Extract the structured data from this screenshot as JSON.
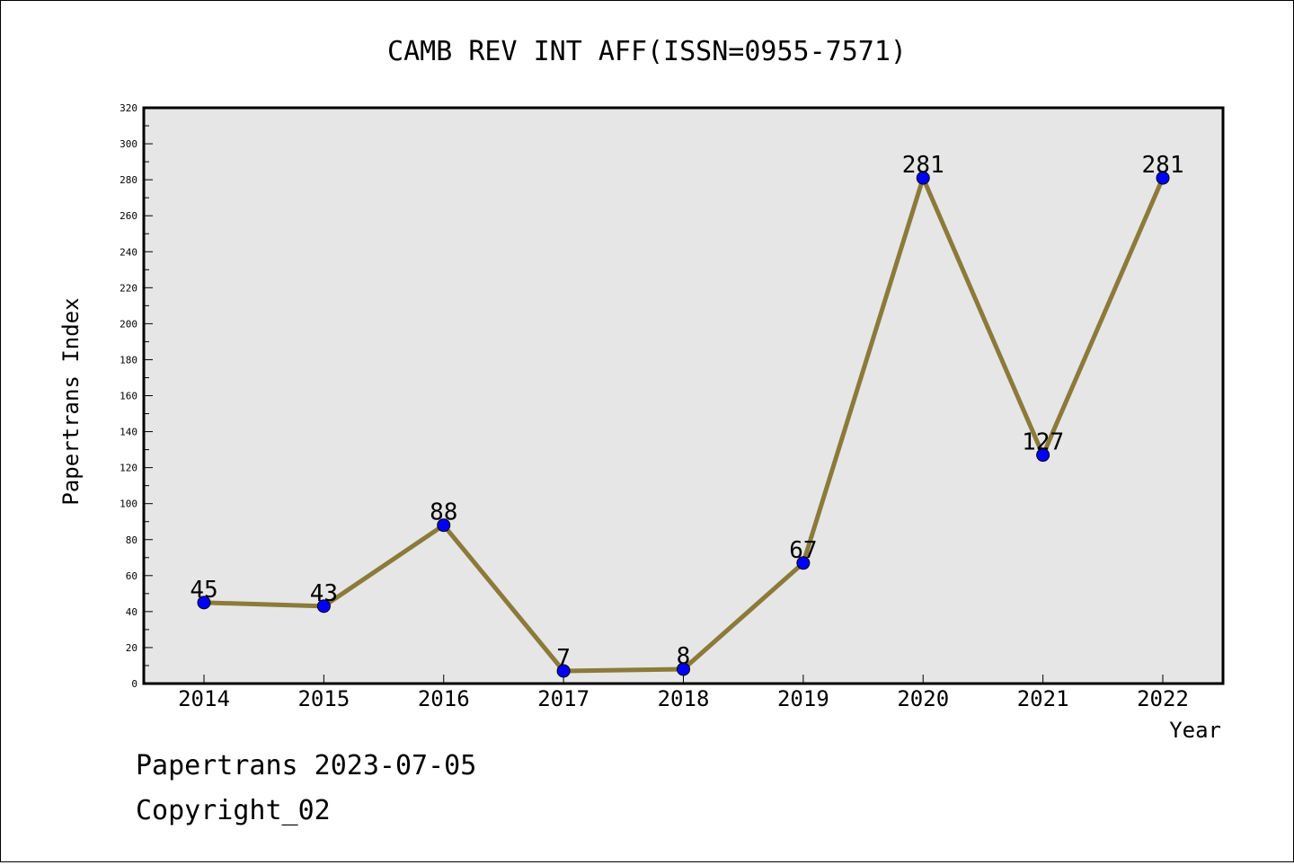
{
  "chart_data": {
    "type": "line",
    "title": "CAMB REV INT AFF(ISSN=0955-7571)",
    "xlabel": "Year",
    "ylabel": "Papertrans Index",
    "categories": [
      "2014",
      "2015",
      "2016",
      "2017",
      "2018",
      "2019",
      "2020",
      "2021",
      "2022"
    ],
    "values": [
      45,
      43,
      88,
      7,
      8,
      67,
      281,
      127,
      281
    ],
    "ylim": [
      0,
      320
    ],
    "yticks": [
      0,
      20,
      40,
      60,
      80,
      100,
      120,
      140,
      160,
      180,
      200,
      220,
      240,
      260,
      280,
      300,
      320
    ],
    "grid": false,
    "plot_background": "#e6e6e6",
    "line_color": "#8c7a3a",
    "marker_color": "#0000ff"
  },
  "footer": {
    "source_line": "Papertrans 2023-07-05",
    "copyright_line": "Copyright_02"
  }
}
